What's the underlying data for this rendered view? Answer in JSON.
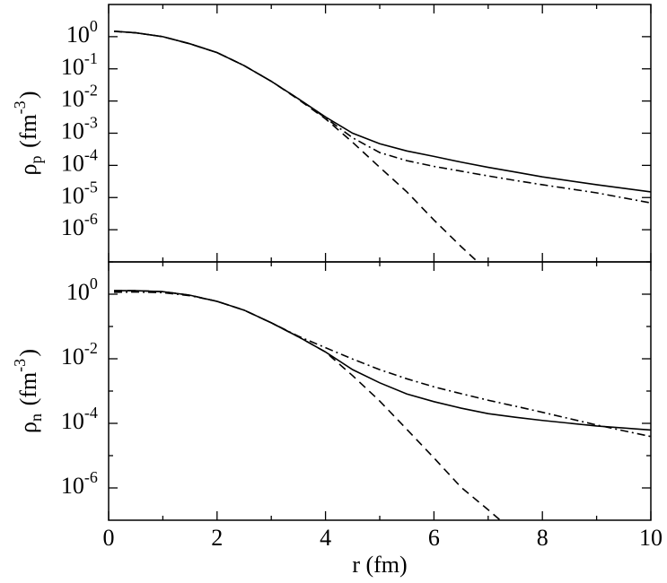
{
  "chart_data": [
    {
      "type": "line",
      "yscale": "log",
      "ylabel": "ρ_{p} (fm^{-3})",
      "x": [
        0.1,
        0.5,
        1,
        1.5,
        2,
        2.5,
        3,
        3.5,
        4,
        4.5,
        5,
        5.5,
        6,
        6.5,
        7,
        7.5,
        8,
        9,
        10
      ],
      "xlim": [
        0,
        10
      ],
      "xticks": [
        0,
        2,
        4,
        6,
        8,
        10
      ],
      "xminorticks": [
        1,
        3,
        5,
        7,
        9
      ],
      "xticklabels": false,
      "ylim": [
        1e-07,
        10
      ],
      "yticks": [
        {
          "value": 1,
          "label": "10^{0}"
        },
        {
          "value": 0.1,
          "label": "10^{-1}"
        },
        {
          "value": 0.01,
          "label": "10^{-2}"
        },
        {
          "value": 0.001,
          "label": "10^{-3}"
        },
        {
          "value": 0.0001,
          "label": "10^{-4}"
        },
        {
          "value": 1e-05,
          "label": "10^{-5}"
        },
        {
          "value": 1e-06,
          "label": "10^{-6}"
        }
      ],
      "yminorticks": [],
      "series": [
        {
          "color": "#000000",
          "dash": "solid",
          "values": [
            1.48,
            1.32,
            1.0,
            0.6,
            0.32,
            0.126,
            0.041,
            0.0117,
            0.0032,
            0.001,
            0.00047,
            0.00028,
            0.00019,
            0.000126,
            8.7e-05,
            6.2e-05,
            4.4e-05,
            2.5e-05,
            1.5e-05
          ]
        },
        {
          "color": "#000000",
          "dash": "dashed",
          "values": [
            1.48,
            1.32,
            1.0,
            0.6,
            0.32,
            0.126,
            0.041,
            0.0112,
            0.0028,
            0.00052,
            8.7e-05,
            1.5e-05,
            2e-06,
            3e-07,
            5e-08,
            null,
            null,
            null,
            null
          ]
        },
        {
          "color": "#000000",
          "dash": "dashdot",
          "values": [
            1.45,
            1.32,
            1.0,
            0.6,
            0.32,
            0.126,
            0.041,
            0.0117,
            0.003,
            0.00072,
            0.00025,
            0.00014,
            9.3e-05,
            6.6e-05,
            4.7e-05,
            3.4e-05,
            2.5e-05,
            1.4e-05,
            6.8e-06
          ]
        }
      ]
    },
    {
      "type": "line",
      "yscale": "log",
      "ylabel": "ρ_{n} (fm^{-3})",
      "xlabel": "r (fm)",
      "x": [
        0.1,
        0.5,
        1,
        1.5,
        2,
        2.5,
        3,
        3.5,
        4,
        4.5,
        5,
        5.5,
        6,
        6.5,
        7,
        7.5,
        8,
        9,
        10
      ],
      "xlim": [
        0,
        10
      ],
      "xticks": [
        0,
        2,
        4,
        6,
        8,
        10
      ],
      "xminorticks": [
        1,
        3,
        5,
        7,
        9
      ],
      "xticklabels": true,
      "ylim": [
        1e-07,
        10
      ],
      "yticks": [
        {
          "value": 1,
          "label": "10^{0}"
        },
        {
          "value": 0.01,
          "label": "10^{-2}"
        },
        {
          "value": 0.0001,
          "label": "10^{-4}"
        },
        {
          "value": 1e-06,
          "label": "10^{-6}"
        }
      ],
      "yminorticks": [
        10,
        0.1,
        0.001,
        1e-05
      ],
      "series": [
        {
          "color": "#000000",
          "dash": "solid",
          "values": [
            1.29,
            1.29,
            1.2,
            0.93,
            0.6,
            0.32,
            0.13,
            0.048,
            0.0162,
            0.0046,
            0.0018,
            0.00081,
            0.00047,
            0.000295,
            0.0002,
            0.000155,
            0.000123,
            8.3e-05,
            6.2e-05
          ]
        },
        {
          "color": "#000000",
          "dash": "dashed",
          "values": [
            1.29,
            1.29,
            1.2,
            0.93,
            0.6,
            0.32,
            0.13,
            0.048,
            0.0162,
            0.003,
            0.00049,
            6.5e-05,
            8.5e-06,
            1.05e-06,
            2.1e-07,
            4e-08,
            null,
            null,
            null
          ]
        },
        {
          "color": "#000000",
          "dash": "dashdot",
          "values": [
            1.15,
            1.17,
            1.12,
            0.9,
            0.6,
            0.32,
            0.13,
            0.05,
            0.022,
            0.0098,
            0.0046,
            0.0024,
            0.00135,
            0.00083,
            0.00052,
            0.00034,
            0.00022,
            8.9e-05,
            3.9e-05
          ]
        }
      ]
    }
  ]
}
